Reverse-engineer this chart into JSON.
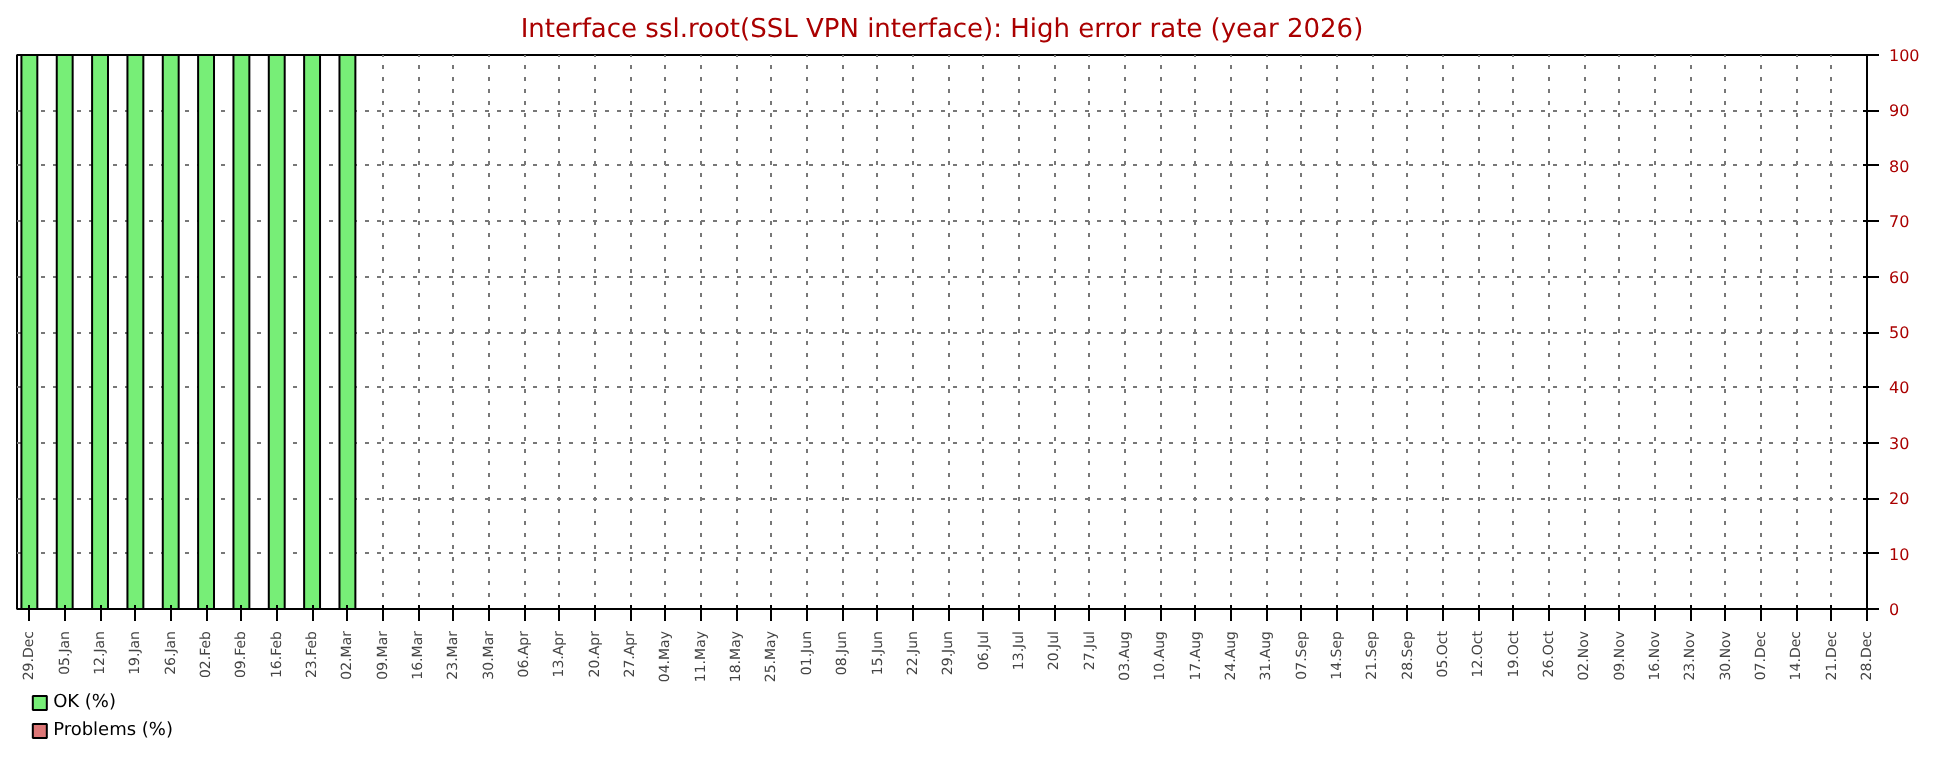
{
  "chart_data": {
    "type": "bar",
    "title": "Interface ssl.root(SSL VPN interface): High error rate (year 2026)",
    "categories": [
      "29.Dec",
      "05.Jan",
      "12.Jan",
      "19.Jan",
      "26.Jan",
      "02.Feb",
      "09.Feb",
      "16.Feb",
      "23.Feb",
      "02.Mar",
      "09.Mar",
      "16.Mar",
      "23.Mar",
      "30.Mar",
      "06.Apr",
      "13.Apr",
      "20.Apr",
      "27.Apr",
      "04.May",
      "11.May",
      "18.May",
      "25.May",
      "01.Jun",
      "08.Jun",
      "15.Jun",
      "22.Jun",
      "29.Jun",
      "06.Jul",
      "13.Jul",
      "20.Jul",
      "27.Jul",
      "03.Aug",
      "10.Aug",
      "17.Aug",
      "24.Aug",
      "31.Aug",
      "07.Sep",
      "14.Sep",
      "21.Sep",
      "28.Sep",
      "05.Oct",
      "12.Oct",
      "19.Oct",
      "26.Oct",
      "02.Nov",
      "09.Nov",
      "16.Nov",
      "23.Nov",
      "30.Nov",
      "07.Dec",
      "14.Dec",
      "21.Dec",
      "28.Dec"
    ],
    "series": [
      {
        "name": "OK (%)",
        "color": "#77ee77",
        "values": [
          100,
          100,
          100,
          100,
          100,
          100,
          100,
          100,
          100,
          100,
          null,
          null,
          null,
          null,
          null,
          null,
          null,
          null,
          null,
          null,
          null,
          null,
          null,
          null,
          null,
          null,
          null,
          null,
          null,
          null,
          null,
          null,
          null,
          null,
          null,
          null,
          null,
          null,
          null,
          null,
          null,
          null,
          null,
          null,
          null,
          null,
          null,
          null,
          null,
          null,
          null,
          null,
          null
        ]
      },
      {
        "name": "Problems (%)",
        "color": "#dd7777",
        "values": [
          null,
          null,
          null,
          null,
          null,
          null,
          null,
          null,
          null,
          null,
          null,
          null,
          null,
          null,
          null,
          null,
          null,
          null,
          null,
          null,
          null,
          null,
          null,
          null,
          null,
          null,
          null,
          null,
          null,
          null,
          null,
          null,
          null,
          null,
          null,
          null,
          null,
          null,
          null,
          null,
          null,
          null,
          null,
          null,
          null,
          null,
          null,
          null,
          null,
          null,
          null,
          null,
          null
        ]
      }
    ],
    "ylim": [
      0,
      100
    ],
    "yticks": [
      0,
      10,
      20,
      30,
      40,
      50,
      60,
      70,
      80,
      90,
      100
    ],
    "grid": true,
    "legend": "bottom left"
  }
}
